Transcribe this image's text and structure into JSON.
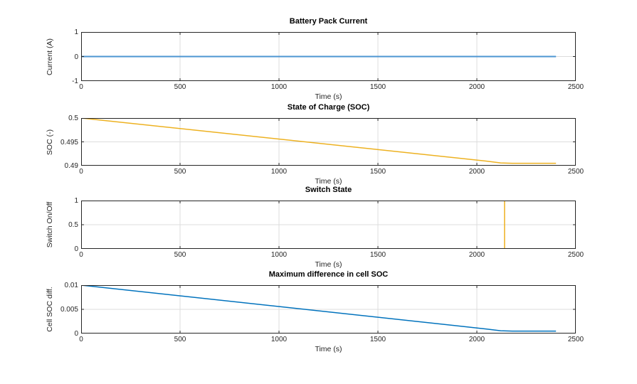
{
  "figure": {
    "background": "#ffffff",
    "axis_color": "#262626",
    "grid_color": "#dcdcdc",
    "tick_label_color": "#262626",
    "matlab_blue": "#0072bd",
    "matlab_yellow": "#edb120"
  },
  "chart_data": [
    {
      "type": "line",
      "title": "Battery Pack Current",
      "xlabel": "Time (s)",
      "ylabel": "Current (A)",
      "xlim": [
        0,
        2500
      ],
      "ylim": [
        -1,
        1
      ],
      "xticks": [
        0,
        500,
        1000,
        1500,
        2000,
        2500
      ],
      "xtick_labels": [
        "0",
        "500",
        "1000",
        "1500",
        "2000",
        "2500"
      ],
      "yticks": [
        -1,
        0,
        1
      ],
      "ytick_labels": [
        "-1",
        "0",
        "1"
      ],
      "grid": true,
      "legend": "none",
      "series": [
        {
          "name": "blue-line",
          "color": "#4d96d2",
          "width": 2,
          "points": [
            [
              0,
              0
            ],
            [
              2400,
              0
            ]
          ]
        }
      ]
    },
    {
      "type": "line",
      "title": "State of Charge (SOC)",
      "xlabel": "Time (s)",
      "ylabel": "SOC (-)",
      "xlim": [
        0,
        2500
      ],
      "ylim": [
        0.49,
        0.5
      ],
      "xticks": [
        0,
        500,
        1000,
        1500,
        2000,
        2500
      ],
      "xtick_labels": [
        "0",
        "500",
        "1000",
        "1500",
        "2000",
        "2500"
      ],
      "yticks": [
        0.49,
        0.495,
        0.5
      ],
      "ytick_labels": [
        "0.49",
        "0.495",
        "0.5"
      ],
      "grid": true,
      "legend": "none",
      "series": [
        {
          "name": "blue-line",
          "color": "#0072bd",
          "width": 1.5,
          "points": [
            [
              0,
              0.49
            ],
            [
              2400,
              0.49
            ]
          ]
        },
        {
          "name": "yellow-line",
          "color": "#edb120",
          "width": 1.5,
          "points": [
            [
              0,
              0.5
            ],
            [
              2050,
              0.49095
            ],
            [
              2120,
              0.49058
            ],
            [
              2180,
              0.4905
            ],
            [
              2400,
              0.4905
            ]
          ]
        }
      ]
    },
    {
      "type": "line",
      "title": "Switch State",
      "xlabel": "Time (s)",
      "ylabel": "Switch On/Off",
      "xlim": [
        0,
        2500
      ],
      "ylim": [
        0,
        1
      ],
      "xticks": [
        0,
        500,
        1000,
        1500,
        2000,
        2500
      ],
      "xtick_labels": [
        "0",
        "500",
        "1000",
        "1500",
        "2000",
        "2500"
      ],
      "yticks": [
        0,
        0.5,
        1
      ],
      "ytick_labels": [
        "0",
        "0.5",
        "1"
      ],
      "grid": true,
      "legend": "none",
      "series": [
        {
          "name": "blue-line",
          "color": "#0072bd",
          "width": 1.5,
          "points": [
            [
              0,
              0
            ],
            [
              2400,
              0
            ]
          ]
        },
        {
          "name": "yellow-line",
          "color": "#edb120",
          "width": 1.5,
          "points": [
            [
              0,
              0
            ],
            [
              0,
              1
            ],
            [
              2140,
              1
            ],
            [
              2140,
              0
            ],
            [
              2400,
              0
            ]
          ]
        }
      ]
    },
    {
      "type": "line",
      "title": "Maximum difference in cell SOC",
      "xlabel": "Time (s)",
      "ylabel": "Cell SOC diff.",
      "xlim": [
        0,
        2500
      ],
      "ylim": [
        0,
        0.01
      ],
      "xticks": [
        0,
        500,
        1000,
        1500,
        2000,
        2500
      ],
      "xtick_labels": [
        "0",
        "500",
        "1000",
        "1500",
        "2000",
        "2500"
      ],
      "yticks": [
        0,
        0.005,
        0.01
      ],
      "ytick_labels": [
        "0",
        "0.005",
        "0.01"
      ],
      "grid": true,
      "legend": "none",
      "series": [
        {
          "name": "blue-line",
          "color": "#0072bd",
          "width": 1.5,
          "points": [
            [
              0,
              0.01
            ],
            [
              2050,
              0.00092
            ],
            [
              2120,
              0.00058
            ],
            [
              2180,
              0.0005
            ],
            [
              2400,
              0.0005
            ]
          ]
        }
      ]
    }
  ]
}
